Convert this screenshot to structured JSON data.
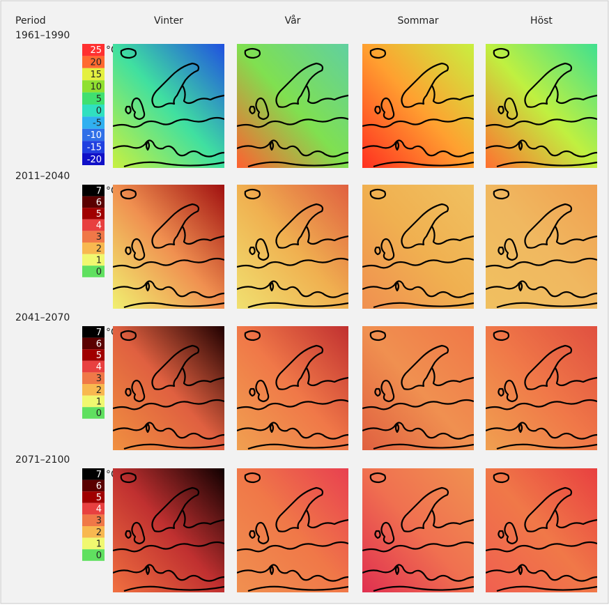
{
  "header": {
    "period": "Period",
    "seasons": [
      "Vinter",
      "Vår",
      "Sommar",
      "Höst"
    ]
  },
  "rows": [
    {
      "period": "1961–1990",
      "unit": "°C",
      "legend": [
        {
          "label": "25",
          "color": "#ff3030"
        },
        {
          "label": "20",
          "color": "#ff6a30"
        },
        {
          "label": "15",
          "color": "#e4f040"
        },
        {
          "label": "10",
          "color": "#90e030"
        },
        {
          "label": "5",
          "color": "#40e070"
        },
        {
          "label": "0",
          "color": "#30e0c0"
        },
        {
          "label": "-5",
          "color": "#30b0f0"
        },
        {
          "label": "-10",
          "color": "#3070e8"
        },
        {
          "label": "-15",
          "color": "#2040e0"
        },
        {
          "label": "-20",
          "color": "#1010c8"
        }
      ],
      "maps": [
        {
          "colors": [
            "#2050e0",
            "#40e0a0",
            "#c8f040"
          ]
        },
        {
          "colors": [
            "#60d0a0",
            "#80e050",
            "#ff6030"
          ]
        },
        {
          "colors": [
            "#c8f040",
            "#ffa030",
            "#ff3020"
          ]
        },
        {
          "colors": [
            "#40e090",
            "#c0f040",
            "#ff7030"
          ]
        }
      ]
    },
    {
      "period": "2011–2040",
      "unit": "°C",
      "legend": [
        {
          "label": "7",
          "color": "#000000"
        },
        {
          "label": "6",
          "color": "#5a0000"
        },
        {
          "label": "5",
          "color": "#a00000"
        },
        {
          "label": "4",
          "color": "#e84040"
        },
        {
          "label": "3",
          "color": "#f07848"
        },
        {
          "label": "2",
          "color": "#f8b850"
        },
        {
          "label": "1",
          "color": "#f0f870"
        },
        {
          "label": "0",
          "color": "#60e060"
        }
      ],
      "maps": [
        {
          "colors": [
            "#a01010",
            "#f09050",
            "#f0f070"
          ]
        },
        {
          "colors": [
            "#e06040",
            "#f0b050",
            "#f0e070"
          ]
        },
        {
          "colors": [
            "#f0c060",
            "#f0b050",
            "#f09050"
          ]
        },
        {
          "colors": [
            "#f0a050",
            "#f0b860",
            "#f0c060"
          ]
        }
      ]
    },
    {
      "period": "2041–2070",
      "unit": "°C",
      "legend": [
        {
          "label": "7",
          "color": "#000000"
        },
        {
          "label": "6",
          "color": "#5a0000"
        },
        {
          "label": "5",
          "color": "#a00000"
        },
        {
          "label": "4",
          "color": "#e84040"
        },
        {
          "label": "3",
          "color": "#f07848"
        },
        {
          "label": "2",
          "color": "#f8b850"
        },
        {
          "label": "1",
          "color": "#f0f870"
        },
        {
          "label": "0",
          "color": "#60e060"
        }
      ],
      "maps": [
        {
          "colors": [
            "#200000",
            "#e06040",
            "#f09040"
          ]
        },
        {
          "colors": [
            "#c03030",
            "#f07848",
            "#f0a050"
          ]
        },
        {
          "colors": [
            "#f07848",
            "#f09050",
            "#e06040"
          ]
        },
        {
          "colors": [
            "#e05040",
            "#f07848",
            "#f0a050"
          ]
        }
      ]
    },
    {
      "period": "2071–2100",
      "unit": "°C",
      "legend": [
        {
          "label": "7",
          "color": "#000000"
        },
        {
          "label": "6",
          "color": "#5a0000"
        },
        {
          "label": "5",
          "color": "#a00000"
        },
        {
          "label": "4",
          "color": "#e84040"
        },
        {
          "label": "3",
          "color": "#f07848"
        },
        {
          "label": "2",
          "color": "#f8b850"
        },
        {
          "label": "1",
          "color": "#f0f870"
        },
        {
          "label": "0",
          "color": "#60e060"
        }
      ],
      "maps": [
        {
          "colors": [
            "#100000",
            "#c03030",
            "#f07040"
          ]
        },
        {
          "colors": [
            "#e84050",
            "#f07848",
            "#f09050"
          ]
        },
        {
          "colors": [
            "#f09050",
            "#f07050",
            "#e03050"
          ]
        },
        {
          "colors": [
            "#e84040",
            "#f07848",
            "#f06050"
          ]
        }
      ]
    }
  ]
}
